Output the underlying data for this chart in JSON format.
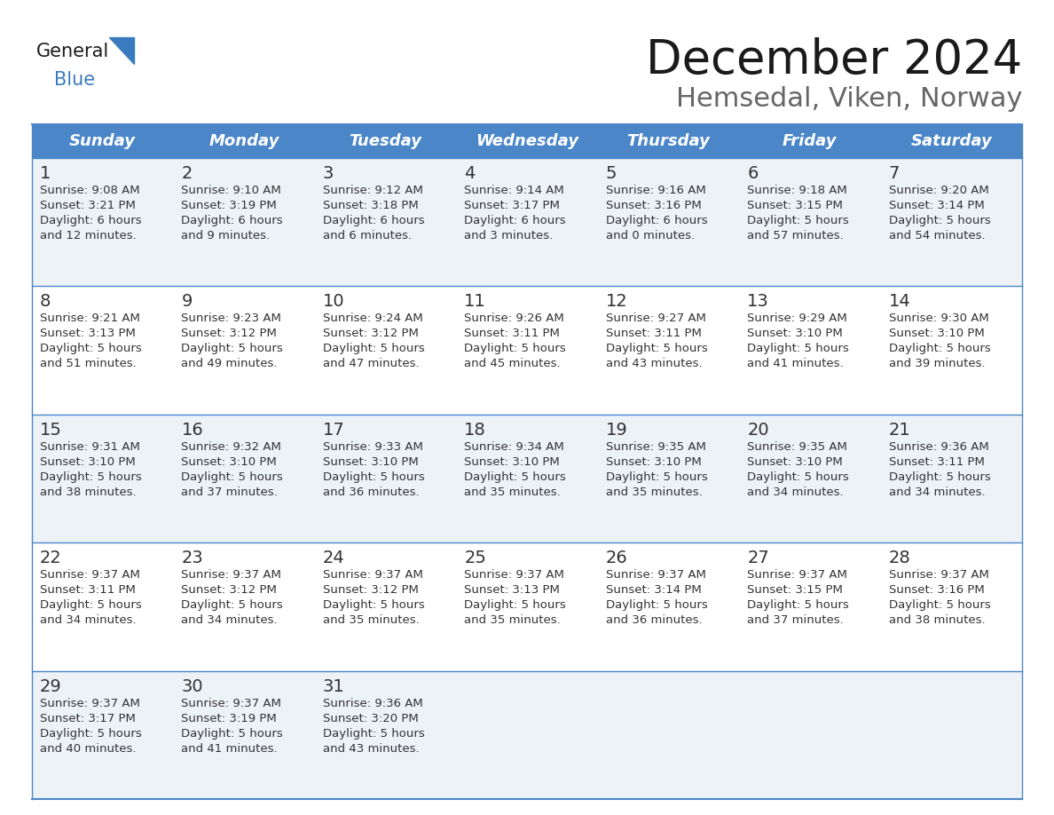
{
  "title": "December 2024",
  "subtitle": "Hemsedal, Viken, Norway",
  "header_color": "#4a86c8",
  "header_text_color": "#ffffff",
  "day_names": [
    "Sunday",
    "Monday",
    "Tuesday",
    "Wednesday",
    "Thursday",
    "Friday",
    "Saturday"
  ],
  "bg_color": "#ffffff",
  "cell_bg_even": "#edf2f7",
  "cell_bg_odd": "#ffffff",
  "grid_color": "#4a86c8",
  "text_color": "#333333",
  "small_text_color": "#333333",
  "days": [
    {
      "day": 1,
      "col": 0,
      "row": 0,
      "sunrise": "9:08 AM",
      "sunset": "3:21 PM",
      "dl_hours": 6,
      "dl_minutes": 12
    },
    {
      "day": 2,
      "col": 1,
      "row": 0,
      "sunrise": "9:10 AM",
      "sunset": "3:19 PM",
      "dl_hours": 6,
      "dl_minutes": 9
    },
    {
      "day": 3,
      "col": 2,
      "row": 0,
      "sunrise": "9:12 AM",
      "sunset": "3:18 PM",
      "dl_hours": 6,
      "dl_minutes": 6
    },
    {
      "day": 4,
      "col": 3,
      "row": 0,
      "sunrise": "9:14 AM",
      "sunset": "3:17 PM",
      "dl_hours": 6,
      "dl_minutes": 3
    },
    {
      "day": 5,
      "col": 4,
      "row": 0,
      "sunrise": "9:16 AM",
      "sunset": "3:16 PM",
      "dl_hours": 6,
      "dl_minutes": 0
    },
    {
      "day": 6,
      "col": 5,
      "row": 0,
      "sunrise": "9:18 AM",
      "sunset": "3:15 PM",
      "dl_hours": 5,
      "dl_minutes": 57
    },
    {
      "day": 7,
      "col": 6,
      "row": 0,
      "sunrise": "9:20 AM",
      "sunset": "3:14 PM",
      "dl_hours": 5,
      "dl_minutes": 54
    },
    {
      "day": 8,
      "col": 0,
      "row": 1,
      "sunrise": "9:21 AM",
      "sunset": "3:13 PM",
      "dl_hours": 5,
      "dl_minutes": 51
    },
    {
      "day": 9,
      "col": 1,
      "row": 1,
      "sunrise": "9:23 AM",
      "sunset": "3:12 PM",
      "dl_hours": 5,
      "dl_minutes": 49
    },
    {
      "day": 10,
      "col": 2,
      "row": 1,
      "sunrise": "9:24 AM",
      "sunset": "3:12 PM",
      "dl_hours": 5,
      "dl_minutes": 47
    },
    {
      "day": 11,
      "col": 3,
      "row": 1,
      "sunrise": "9:26 AM",
      "sunset": "3:11 PM",
      "dl_hours": 5,
      "dl_minutes": 45
    },
    {
      "day": 12,
      "col": 4,
      "row": 1,
      "sunrise": "9:27 AM",
      "sunset": "3:11 PM",
      "dl_hours": 5,
      "dl_minutes": 43
    },
    {
      "day": 13,
      "col": 5,
      "row": 1,
      "sunrise": "9:29 AM",
      "sunset": "3:10 PM",
      "dl_hours": 5,
      "dl_minutes": 41
    },
    {
      "day": 14,
      "col": 6,
      "row": 1,
      "sunrise": "9:30 AM",
      "sunset": "3:10 PM",
      "dl_hours": 5,
      "dl_minutes": 39
    },
    {
      "day": 15,
      "col": 0,
      "row": 2,
      "sunrise": "9:31 AM",
      "sunset": "3:10 PM",
      "dl_hours": 5,
      "dl_minutes": 38
    },
    {
      "day": 16,
      "col": 1,
      "row": 2,
      "sunrise": "9:32 AM",
      "sunset": "3:10 PM",
      "dl_hours": 5,
      "dl_minutes": 37
    },
    {
      "day": 17,
      "col": 2,
      "row": 2,
      "sunrise": "9:33 AM",
      "sunset": "3:10 PM",
      "dl_hours": 5,
      "dl_minutes": 36
    },
    {
      "day": 18,
      "col": 3,
      "row": 2,
      "sunrise": "9:34 AM",
      "sunset": "3:10 PM",
      "dl_hours": 5,
      "dl_minutes": 35
    },
    {
      "day": 19,
      "col": 4,
      "row": 2,
      "sunrise": "9:35 AM",
      "sunset": "3:10 PM",
      "dl_hours": 5,
      "dl_minutes": 35
    },
    {
      "day": 20,
      "col": 5,
      "row": 2,
      "sunrise": "9:35 AM",
      "sunset": "3:10 PM",
      "dl_hours": 5,
      "dl_minutes": 34
    },
    {
      "day": 21,
      "col": 6,
      "row": 2,
      "sunrise": "9:36 AM",
      "sunset": "3:11 PM",
      "dl_hours": 5,
      "dl_minutes": 34
    },
    {
      "day": 22,
      "col": 0,
      "row": 3,
      "sunrise": "9:37 AM",
      "sunset": "3:11 PM",
      "dl_hours": 5,
      "dl_minutes": 34
    },
    {
      "day": 23,
      "col": 1,
      "row": 3,
      "sunrise": "9:37 AM",
      "sunset": "3:12 PM",
      "dl_hours": 5,
      "dl_minutes": 34
    },
    {
      "day": 24,
      "col": 2,
      "row": 3,
      "sunrise": "9:37 AM",
      "sunset": "3:12 PM",
      "dl_hours": 5,
      "dl_minutes": 35
    },
    {
      "day": 25,
      "col": 3,
      "row": 3,
      "sunrise": "9:37 AM",
      "sunset": "3:13 PM",
      "dl_hours": 5,
      "dl_minutes": 35
    },
    {
      "day": 26,
      "col": 4,
      "row": 3,
      "sunrise": "9:37 AM",
      "sunset": "3:14 PM",
      "dl_hours": 5,
      "dl_minutes": 36
    },
    {
      "day": 27,
      "col": 5,
      "row": 3,
      "sunrise": "9:37 AM",
      "sunset": "3:15 PM",
      "dl_hours": 5,
      "dl_minutes": 37
    },
    {
      "day": 28,
      "col": 6,
      "row": 3,
      "sunrise": "9:37 AM",
      "sunset": "3:16 PM",
      "dl_hours": 5,
      "dl_minutes": 38
    },
    {
      "day": 29,
      "col": 0,
      "row": 4,
      "sunrise": "9:37 AM",
      "sunset": "3:17 PM",
      "dl_hours": 5,
      "dl_minutes": 40
    },
    {
      "day": 30,
      "col": 1,
      "row": 4,
      "sunrise": "9:37 AM",
      "sunset": "3:19 PM",
      "dl_hours": 5,
      "dl_minutes": 41
    },
    {
      "day": 31,
      "col": 2,
      "row": 4,
      "sunrise": "9:36 AM",
      "sunset": "3:20 PM",
      "dl_hours": 5,
      "dl_minutes": 43
    }
  ],
  "num_rows": 5,
  "logo_general_color": "#1a1a1a",
  "logo_blue_color": "#3a7bbf",
  "logo_triangle_color": "#3a7bbf",
  "title_fontsize": 38,
  "subtitle_fontsize": 22,
  "header_fontsize": 13,
  "day_num_fontsize": 14,
  "cell_text_fontsize": 9.5
}
